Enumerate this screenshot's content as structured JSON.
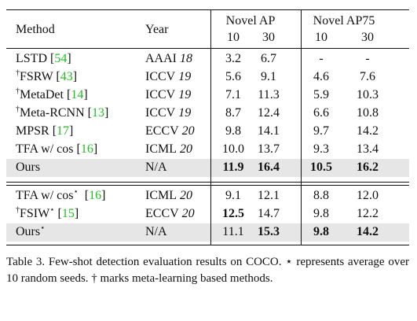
{
  "table": {
    "header": {
      "method": "Method",
      "year": "Year",
      "groups": [
        {
          "label": "Novel AP",
          "sub": [
            "10",
            "30"
          ]
        },
        {
          "label": "Novel AP75",
          "sub": [
            "10",
            "30"
          ]
        }
      ]
    },
    "sections": [
      {
        "rows": [
          {
            "method": [
              {
                "text": "LSTD ["
              },
              {
                "text": "54",
                "cite": true
              },
              {
                "text": "]"
              }
            ],
            "year": {
              "venue": "AAAI",
              "year": "18"
            },
            "values": [
              "3.2",
              "6.7",
              "-",
              "-"
            ],
            "bold": []
          },
          {
            "method": [
              {
                "text": "†",
                "sup": true
              },
              {
                "text": "FSRW ["
              },
              {
                "text": "43",
                "cite": true
              },
              {
                "text": "]"
              }
            ],
            "year": {
              "venue": "ICCV",
              "year": "19"
            },
            "values": [
              "5.6",
              "9.1",
              "4.6",
              "7.6"
            ],
            "bold": []
          },
          {
            "method": [
              {
                "text": "†",
                "sup": true
              },
              {
                "text": "MetaDet ["
              },
              {
                "text": "14",
                "cite": true
              },
              {
                "text": "]"
              }
            ],
            "year": {
              "venue": "ICCV",
              "year": "19"
            },
            "values": [
              "7.1",
              "11.3",
              "5.9",
              "10.3"
            ],
            "bold": []
          },
          {
            "method": [
              {
                "text": "†",
                "sup": true
              },
              {
                "text": "Meta-RCNN ["
              },
              {
                "text": "13",
                "cite": true
              },
              {
                "text": "]"
              }
            ],
            "year": {
              "venue": "ICCV",
              "year": "19"
            },
            "values": [
              "8.7",
              "12.4",
              "6.6",
              "10.8"
            ],
            "bold": []
          },
          {
            "method": [
              {
                "text": "MPSR ["
              },
              {
                "text": "17",
                "cite": true
              },
              {
                "text": "]"
              }
            ],
            "year": {
              "venue": "ECCV",
              "year": "20"
            },
            "values": [
              "9.8",
              "14.1",
              "9.7",
              "14.2"
            ],
            "bold": []
          },
          {
            "method": [
              {
                "text": "TFA w/ cos ["
              },
              {
                "text": "16",
                "cite": true
              },
              {
                "text": "]"
              }
            ],
            "year": {
              "venue": "ICML",
              "year": "20"
            },
            "values": [
              "10.0",
              "13.7",
              "9.3",
              "13.4"
            ],
            "bold": []
          },
          {
            "method": [
              {
                "text": "Ours"
              }
            ],
            "year": {
              "venue": "N/A"
            },
            "values": [
              "11.9",
              "16.4",
              "10.5",
              "16.2"
            ],
            "bold": [
              0,
              1,
              2,
              3
            ],
            "highlight": true
          }
        ]
      },
      {
        "rows": [
          {
            "method": [
              {
                "text": "TFA w/ cos"
              },
              {
                "text": "⋆",
                "sup": true
              },
              {
                "text": "  ["
              },
              {
                "text": "16",
                "cite": true
              },
              {
                "text": "]"
              }
            ],
            "year": {
              "venue": "ICML",
              "year": "20"
            },
            "values": [
              "9.1",
              "12.1",
              "8.8",
              "12.0"
            ],
            "bold": []
          },
          {
            "method": [
              {
                "text": "†",
                "sup": true
              },
              {
                "text": "FSIW"
              },
              {
                "text": "⋆",
                "sup": true
              },
              {
                "text": " ["
              },
              {
                "text": "15",
                "cite": true
              },
              {
                "text": "]"
              }
            ],
            "year": {
              "venue": "ECCV",
              "year": "20"
            },
            "values": [
              "12.5",
              "14.7",
              "9.8",
              "12.2"
            ],
            "bold": [
              0
            ]
          },
          {
            "method": [
              {
                "text": "Ours"
              },
              {
                "text": "⋆",
                "sup": true
              }
            ],
            "year": {
              "venue": "N/A"
            },
            "values": [
              "11.1",
              "15.3",
              "9.8",
              "14.2"
            ],
            "bold": [
              1,
              2,
              3
            ],
            "highlight": true
          }
        ]
      }
    ]
  },
  "caption": "Table 3. Few-shot detection evaluation results on COCO. ⋆ represents average over 10 random seeds. † marks meta-learning based methods."
}
